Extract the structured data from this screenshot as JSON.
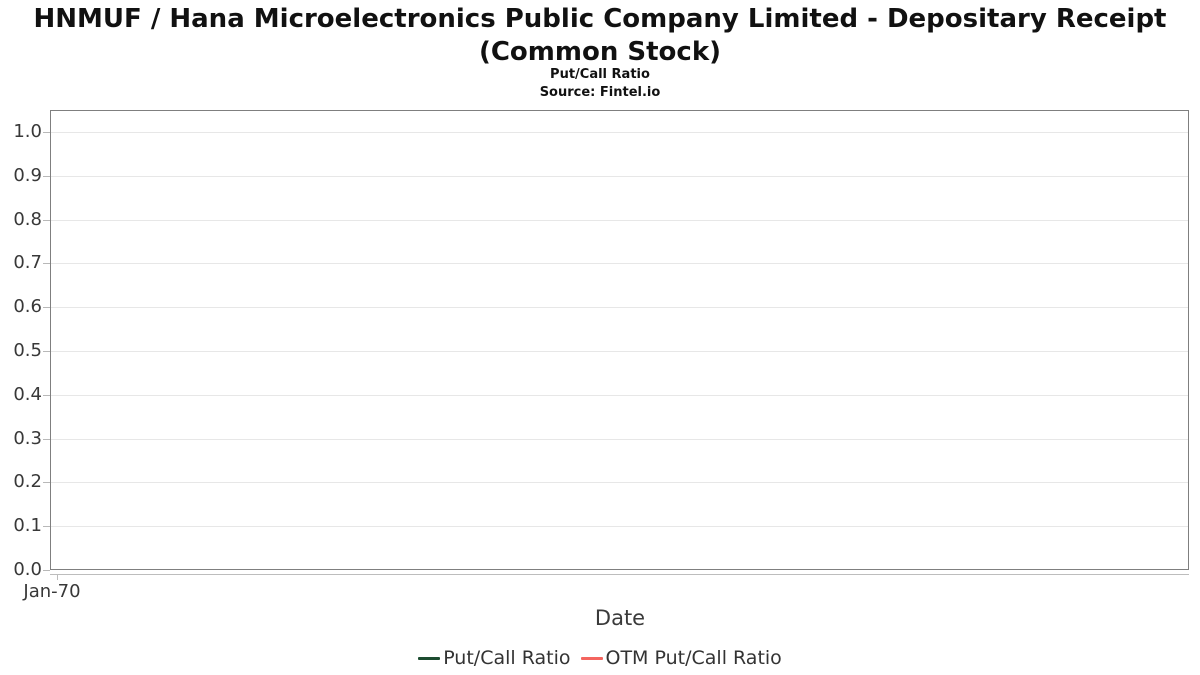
{
  "header": {
    "title_line1": "HNMUF / Hana Microelectronics Public Company Limited - Depositary Receipt",
    "title_line2": "(Common Stock)",
    "subtitle": "Put/Call Ratio",
    "source": "Source: Fintel.io"
  },
  "chart_data": {
    "type": "line",
    "title": "HNMUF / Hana Microelectronics Public Company Limited - Depositary Receipt (Common Stock)",
    "subtitle": "Put/Call Ratio",
    "source": "Source: Fintel.io",
    "xlabel": "Date",
    "ylabel": "",
    "ylim": [
      0.0,
      1.0
    ],
    "y_ticks": [
      "1.0",
      "0.9",
      "0.8",
      "0.7",
      "0.6",
      "0.5",
      "0.4",
      "0.3",
      "0.2",
      "0.1",
      "0.0"
    ],
    "x_ticks": [
      "Jan-70"
    ],
    "grid": true,
    "legend_position": "bottom-center",
    "series": [
      {
        "name": "Put/Call Ratio",
        "color": "#1c4c30",
        "x": [],
        "values": []
      },
      {
        "name": "OTM Put/Call Ratio",
        "color": "#f4655f",
        "x": [],
        "values": []
      }
    ],
    "colors": {
      "plot_border": "#7f7f7f",
      "gridline": "#e7e7e7",
      "axis_line": "#bdbdbd",
      "tick_text": "#383838",
      "title_text": "#111111"
    }
  }
}
